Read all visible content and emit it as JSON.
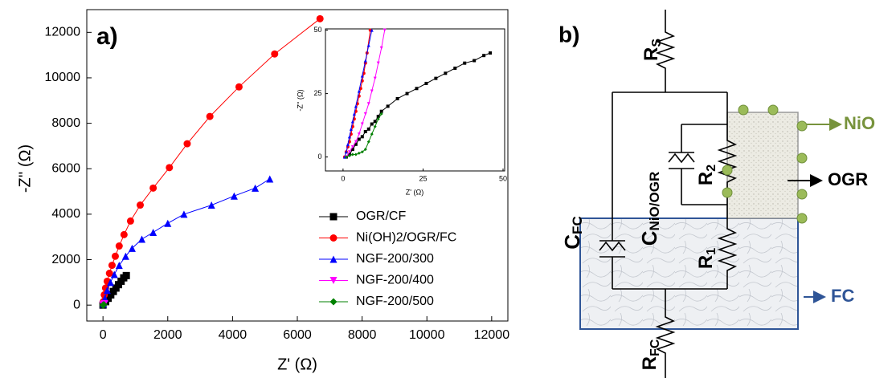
{
  "chart_data": [
    {
      "type": "scatter-line",
      "panel_label": "a)",
      "x_label": "Z' (Ω)",
      "y_label": "-Z'' (Ω)",
      "xlim": [
        -500,
        12500
      ],
      "ylim": [
        -700,
        13000
      ],
      "xticks": [
        0,
        2000,
        4000,
        6000,
        8000,
        10000,
        12000
      ],
      "yticks": [
        0,
        2000,
        4000,
        6000,
        8000,
        10000,
        12000
      ],
      "legend": "lower right",
      "series": [
        {
          "name": "OGR/CF",
          "color": "#000000",
          "marker": "square",
          "x": [
            0,
            80,
            160,
            240,
            320,
            400,
            480,
            560,
            640,
            720
          ],
          "values": [
            0,
            150,
            300,
            450,
            600,
            750,
            900,
            1050,
            1200,
            1300
          ]
        },
        {
          "name": "Ni(OH)2/OGR/FC",
          "color": "#ff0000",
          "marker": "circle",
          "x": [
            10,
            40,
            80,
            130,
            200,
            280,
            380,
            500,
            650,
            850,
            1150,
            1550,
            2050,
            2600,
            3300,
            4200,
            5300,
            6700
          ],
          "values": [
            150,
            450,
            750,
            1050,
            1400,
            1750,
            2150,
            2600,
            3100,
            3700,
            4400,
            5150,
            6050,
            7100,
            8300,
            9600,
            11050,
            12600
          ]
        },
        {
          "name": "NGF-200/300",
          "color": "#0000ff",
          "marker": "triangle-up",
          "x": [
            10,
            60,
            130,
            230,
            350,
            500,
            700,
            900,
            1200,
            1550,
            2000,
            2500,
            3350,
            4050,
            4700,
            5150
          ],
          "values": [
            50,
            300,
            650,
            1000,
            1350,
            1750,
            2150,
            2500,
            2900,
            3200,
            3600,
            4000,
            4400,
            4800,
            5150,
            5550
          ]
        },
        {
          "name": "NGF-200/400",
          "color": "#ff00ff",
          "marker": "triangle-down",
          "x": [
            0,
            20,
            50
          ],
          "values": [
            0,
            30,
            60
          ]
        },
        {
          "name": "NGF-200/500",
          "color": "#008000",
          "marker": "diamond",
          "x": [
            0,
            10,
            30
          ],
          "values": [
            0,
            5,
            20
          ]
        }
      ]
    },
    {
      "type": "scatter-line",
      "x_label": "Z' (Ω)",
      "y_label": "-Z'' (Ω)",
      "xlim": [
        -5.5,
        50.5
      ],
      "ylim": [
        -5.5,
        50.5
      ],
      "xticks": [
        0,
        25,
        50
      ],
      "yticks": [
        0,
        25,
        50
      ],
      "series": [
        {
          "color": "#000000",
          "marker": "square",
          "x": [
            1,
            2,
            3,
            4,
            5,
            6,
            7,
            8,
            9,
            10,
            11,
            12,
            14,
            17,
            20,
            23,
            26,
            29,
            32,
            35,
            38,
            41,
            44,
            46
          ],
          "values": [
            0,
            1,
            3,
            5,
            7,
            8,
            10,
            11,
            13,
            14,
            16,
            18,
            20,
            23,
            25,
            27,
            29,
            31,
            33,
            35,
            37,
            38,
            40,
            41
          ]
        },
        {
          "color": "#ff0000",
          "marker": "circle",
          "x": [
            0.5,
            1,
            1.5,
            2,
            2.5,
            3,
            3.5,
            4,
            4.5,
            5,
            5.5,
            6,
            6.5,
            7,
            7.5,
            8.5
          ],
          "values": [
            0,
            2,
            4,
            6,
            9,
            12,
            15,
            18,
            21,
            24,
            27,
            30,
            33,
            37,
            41,
            50
          ]
        },
        {
          "color": "#0000ff",
          "marker": "triangle-up",
          "x": [
            0.5,
            1,
            1.5,
            2,
            2.5,
            3,
            3.5,
            4,
            5,
            6,
            7,
            8,
            9
          ],
          "values": [
            0,
            2,
            5,
            8,
            11,
            14,
            17,
            20,
            26,
            32,
            38,
            44,
            50
          ]
        },
        {
          "color": "#ff00ff",
          "marker": "triangle-down",
          "x": [
            1,
            2,
            3,
            4,
            5,
            6,
            7,
            8,
            9,
            10,
            11,
            12,
            13
          ],
          "values": [
            0,
            2,
            4,
            6,
            9,
            13,
            17,
            21,
            26,
            31,
            37,
            43,
            50
          ]
        },
        {
          "color": "#008000",
          "marker": "diamond",
          "x": [
            1,
            2,
            3,
            4,
            5,
            6,
            7,
            8,
            9,
            10,
            11,
            12
          ],
          "values": [
            0,
            0.5,
            1,
            1,
            1.5,
            2,
            3,
            6,
            9,
            12,
            15,
            17
          ]
        }
      ]
    }
  ],
  "diagram": {
    "panel_label": "b)",
    "rs": {
      "main": "R",
      "sub": "S"
    },
    "cfc": {
      "main": "C",
      "sub": "FC"
    },
    "cnio": {
      "main": "C",
      "sub": "NiO/OGR"
    },
    "r2": {
      "main": "R",
      "sub": "2"
    },
    "r1": {
      "main": "R",
      "sub": "1"
    },
    "rfc": {
      "main": "R",
      "sub": "FC"
    },
    "nio": "NiO",
    "ogr": "OGR",
    "fc": "FC"
  }
}
